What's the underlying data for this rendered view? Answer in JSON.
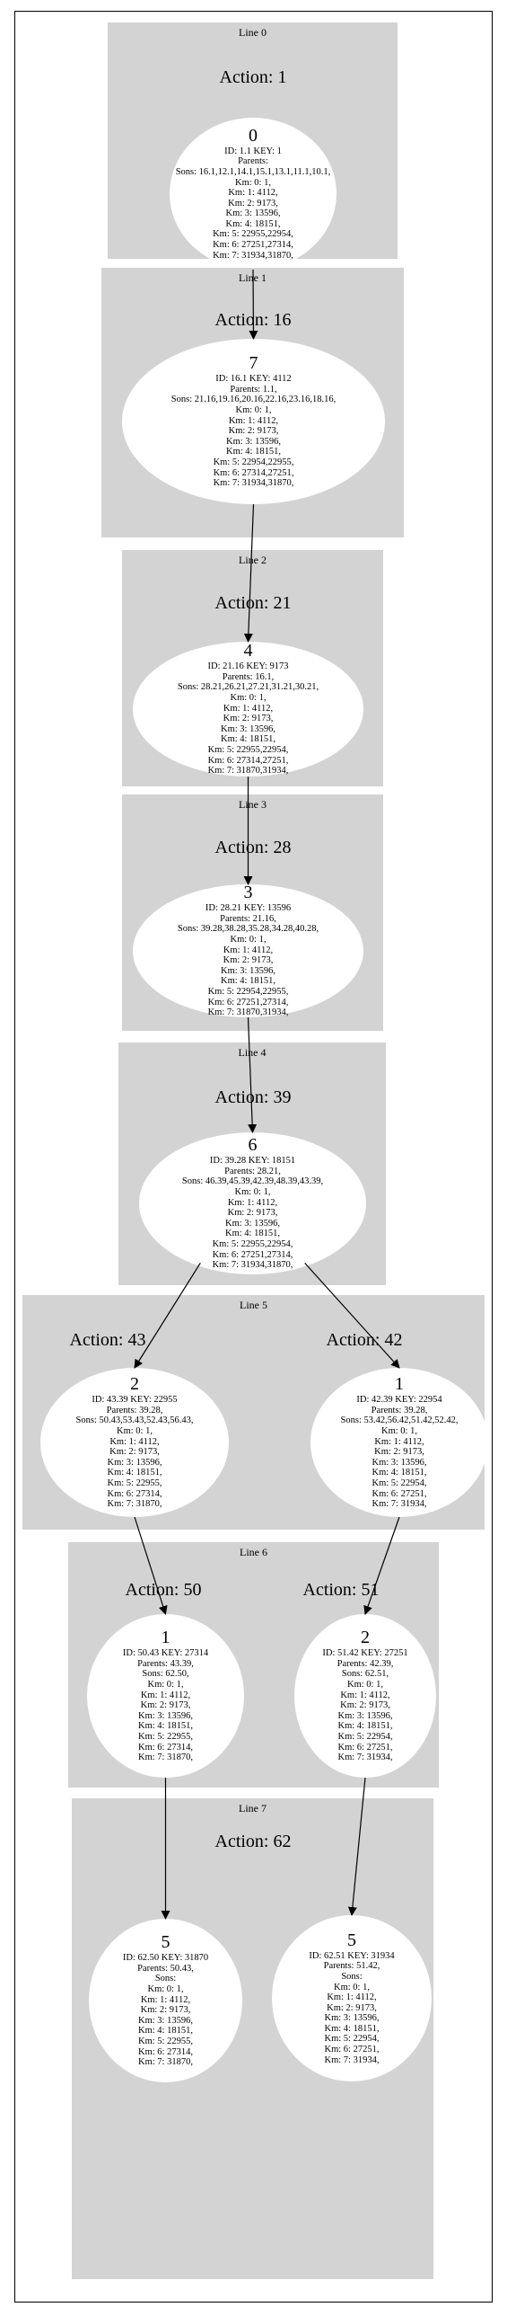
{
  "clusters": [
    {
      "label": "Line 0",
      "actions": [
        "Action: 1"
      ],
      "nodes": [
        {
          "number": "0",
          "lines": [
            "ID: 1.1 KEY: 1",
            "Parents:",
            "Sons: 16.1,12.1,14.1,15.1,13.1,11.1,10.1,",
            "Km: 0: 1,",
            "Km: 1: 4112,",
            "Km: 2: 9173,",
            "Km: 3: 13596,",
            "Km: 4: 18151,",
            "Km: 5: 22955,22954,",
            "Km: 6: 27251,27314,",
            "Km: 7: 31934,31870,"
          ]
        }
      ]
    },
    {
      "label": "Line 1",
      "actions": [
        "Action: 16"
      ],
      "nodes": [
        {
          "number": "7",
          "lines": [
            "ID: 16.1 KEY: 4112",
            "Parents: 1.1,",
            "Sons: 21.16,19.16,20.16,22.16,23.16,18.16,",
            "Km: 0: 1,",
            "Km: 1: 4112,",
            "Km: 2: 9173,",
            "Km: 3: 13596,",
            "Km: 4: 18151,",
            "Km: 5: 22954,22955,",
            "Km: 6: 27314,27251,",
            "Km: 7: 31934,31870,"
          ]
        }
      ]
    },
    {
      "label": "Line 2",
      "actions": [
        "Action: 21"
      ],
      "nodes": [
        {
          "number": "4",
          "lines": [
            "ID: 21.16 KEY: 9173",
            "Parents: 16.1,",
            "Sons: 28.21,26.21,27.21,31.21,30.21,",
            "Km: 0: 1,",
            "Km: 1: 4112,",
            "Km: 2: 9173,",
            "Km: 3: 13596,",
            "Km: 4: 18151,",
            "Km: 5: 22955,22954,",
            "Km: 6: 27314,27251,",
            "Km: 7: 31870,31934,"
          ]
        }
      ]
    },
    {
      "label": "Line 3",
      "actions": [
        "Action: 28"
      ],
      "nodes": [
        {
          "number": "3",
          "lines": [
            "ID: 28.21 KEY: 13596",
            "Parents: 21.16,",
            "Sons: 39.28,38.28,35.28,34.28,40.28,",
            "Km: 0: 1,",
            "Km: 1: 4112,",
            "Km: 2: 9173,",
            "Km: 3: 13596,",
            "Km: 4: 18151,",
            "Km: 5: 22954,22955,",
            "Km: 6: 27251,27314,",
            "Km: 7: 31870,31934,"
          ]
        }
      ]
    },
    {
      "label": "Line 4",
      "actions": [
        "Action: 39"
      ],
      "nodes": [
        {
          "number": "6",
          "lines": [
            "ID: 39.28 KEY: 18151",
            "Parents: 28.21,",
            "Sons: 46.39,45.39,42.39,48.39,43.39,",
            "Km: 0: 1,",
            "Km: 1: 4112,",
            "Km: 2: 9173,",
            "Km: 3: 13596,",
            "Km: 4: 18151,",
            "Km: 5: 22955,22954,",
            "Km: 6: 27251,27314,",
            "Km: 7: 31934,31870,"
          ]
        }
      ]
    },
    {
      "label": "Line 5",
      "actions": [
        "Action: 43",
        "Action: 42"
      ],
      "nodes": [
        {
          "number": "2",
          "lines": [
            "ID: 43.39 KEY: 22955",
            "Parents: 39.28,",
            "Sons: 50.43,53.43,52.43,56.43,",
            "Km: 0: 1,",
            "Km: 1: 4112,",
            "Km: 2: 9173,",
            "Km: 3: 13596,",
            "Km: 4: 18151,",
            "Km: 5: 22955,",
            "Km: 6: 27314,",
            "Km: 7: 31870,"
          ]
        },
        {
          "number": "1",
          "lines": [
            "ID: 42.39 KEY: 22954",
            "Parents: 39.28,",
            "Sons: 53.42,56.42,51.42,52.42,",
            "Km: 0: 1,",
            "Km: 1: 4112,",
            "Km: 2: 9173,",
            "Km: 3: 13596,",
            "Km: 4: 18151,",
            "Km: 5: 22954,",
            "Km: 6: 27251,",
            "Km: 7: 31934,"
          ]
        }
      ]
    },
    {
      "label": "Line 6",
      "actions": [
        "Action: 50",
        "Action: 51"
      ],
      "nodes": [
        {
          "number": "1",
          "lines": [
            "ID: 50.43 KEY: 27314",
            "Parents: 43.39,",
            "Sons: 62.50,",
            "Km: 0: 1,",
            "Km: 1: 4112,",
            "Km: 2: 9173,",
            "Km: 3: 13596,",
            "Km: 4: 18151,",
            "Km: 5: 22955,",
            "Km: 6: 27314,",
            "Km: 7: 31870,"
          ]
        },
        {
          "number": "2",
          "lines": [
            "ID: 51.42 KEY: 27251",
            "Parents: 42.39,",
            "Sons: 62.51,",
            "Km: 0: 1,",
            "Km: 1: 4112,",
            "Km: 2: 9173,",
            "Km: 3: 13596,",
            "Km: 4: 18151,",
            "Km: 5: 22954,",
            "Km: 6: 27251,",
            "Km: 7: 31934,"
          ]
        }
      ]
    },
    {
      "label": "Line 7",
      "actions": [
        "Action: 62"
      ],
      "nodes": [
        {
          "number": "5",
          "lines": [
            "ID: 62.50 KEY: 31870",
            "Parents: 50.43,",
            "Sons:",
            "Km: 0: 1,",
            "Km: 1: 4112,",
            "Km: 2: 9173,",
            "Km: 3: 13596,",
            "Km: 4: 18151,",
            "Km: 5: 22955,",
            "Km: 6: 27314,",
            "Km: 7: 31870,"
          ]
        },
        {
          "number": "5",
          "lines": [
            "ID: 62.51 KEY: 31934",
            "Parents: 51.42,",
            "Sons:",
            "Km: 0: 1,",
            "Km: 1: 4112,",
            "Km: 2: 9173,",
            "Km: 3: 13596,",
            "Km: 4: 18151,",
            "Km: 5: 22954,",
            "Km: 6: 27251,",
            "Km: 7: 31934,"
          ]
        }
      ]
    }
  ]
}
